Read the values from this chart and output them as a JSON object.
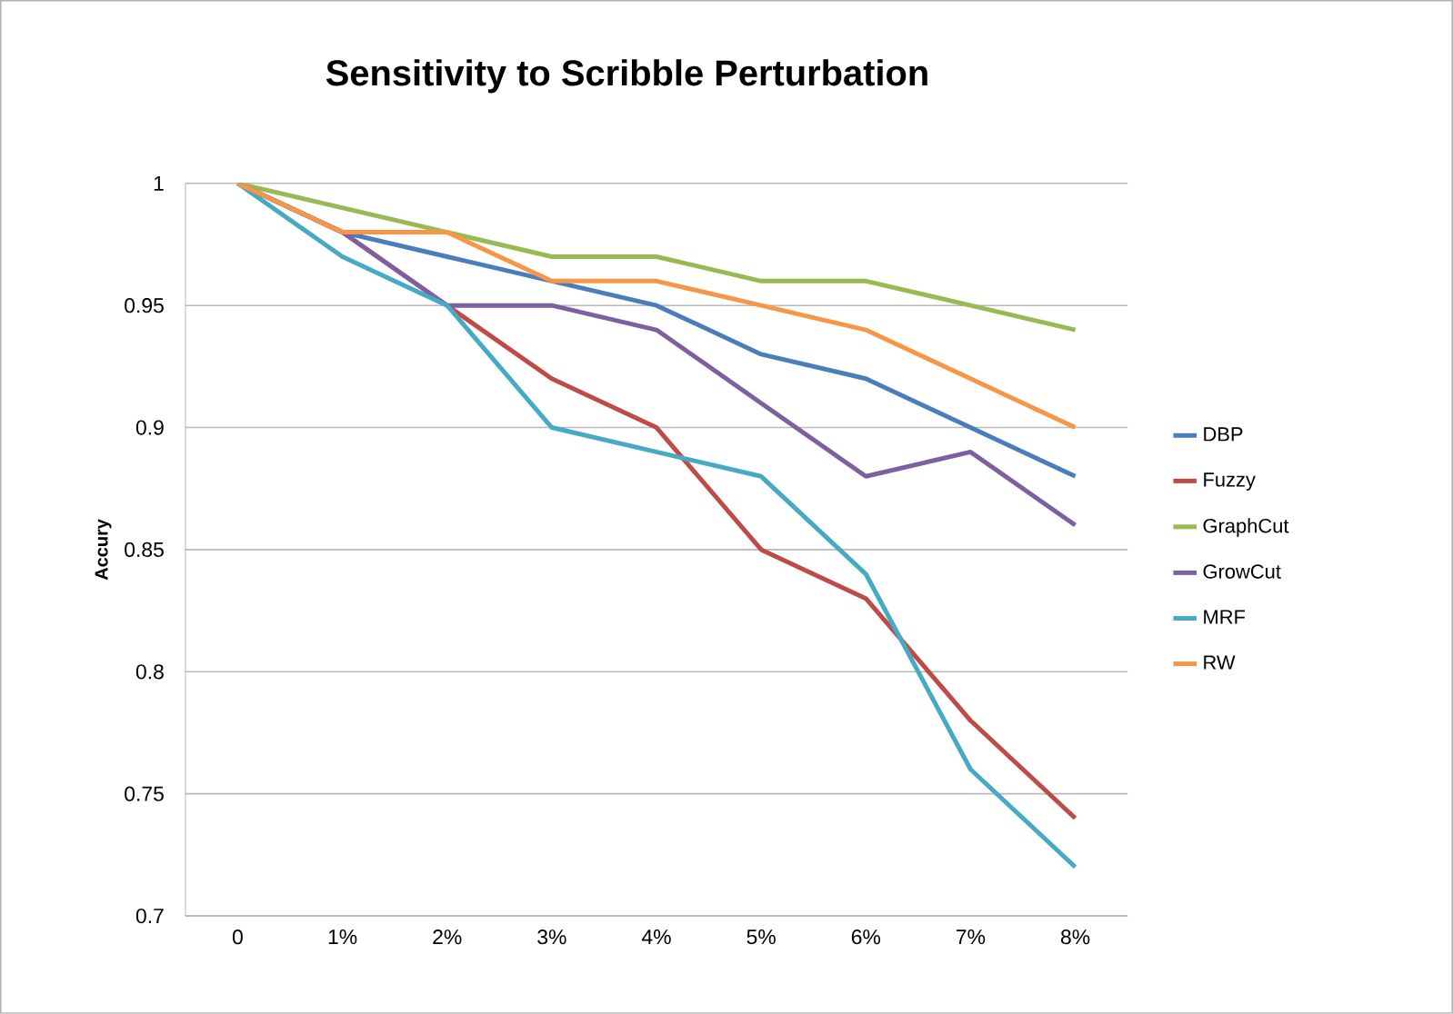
{
  "chart_data": {
    "type": "line",
    "title": "Sensitivity to Scribble Perturbation",
    "ylabel": "Accury",
    "categories": [
      "0",
      "1%",
      "2%",
      "3%",
      "4%",
      "5%",
      "6%",
      "7%",
      "8%"
    ],
    "series": [
      {
        "name": "DBP",
        "color": "#4a7ebb",
        "values": [
          1,
          0.98,
          0.97,
          0.96,
          0.95,
          0.93,
          0.92,
          0.9,
          0.88
        ]
      },
      {
        "name": "Fuzzy",
        "color": "#be4b48",
        "values": [
          1,
          0.98,
          0.95,
          0.92,
          0.9,
          0.85,
          0.83,
          0.78,
          0.74
        ]
      },
      {
        "name": "GraphCut",
        "color": "#98b954",
        "values": [
          1,
          0.99,
          0.98,
          0.97,
          0.97,
          0.96,
          0.96,
          0.95,
          0.94
        ]
      },
      {
        "name": "GrowCut",
        "color": "#7d60a0",
        "values": [
          1,
          0.98,
          0.95,
          0.95,
          0.94,
          0.91,
          0.88,
          0.89,
          0.86
        ]
      },
      {
        "name": "MRF",
        "color": "#46aac5",
        "values": [
          1,
          0.97,
          0.95,
          0.9,
          0.89,
          0.88,
          0.84,
          0.76,
          0.72
        ]
      },
      {
        "name": "RW",
        "color": "#f79646",
        "values": [
          1,
          0.98,
          0.98,
          0.96,
          0.96,
          0.95,
          0.94,
          0.92,
          0.9
        ]
      }
    ],
    "ylim": [
      0.7,
      1
    ],
    "yticks": [
      0.7,
      0.75,
      0.8,
      0.85,
      0.9,
      0.95,
      1
    ],
    "grid": "y",
    "legend": "right",
    "marker": "none",
    "line_style": "solid"
  }
}
